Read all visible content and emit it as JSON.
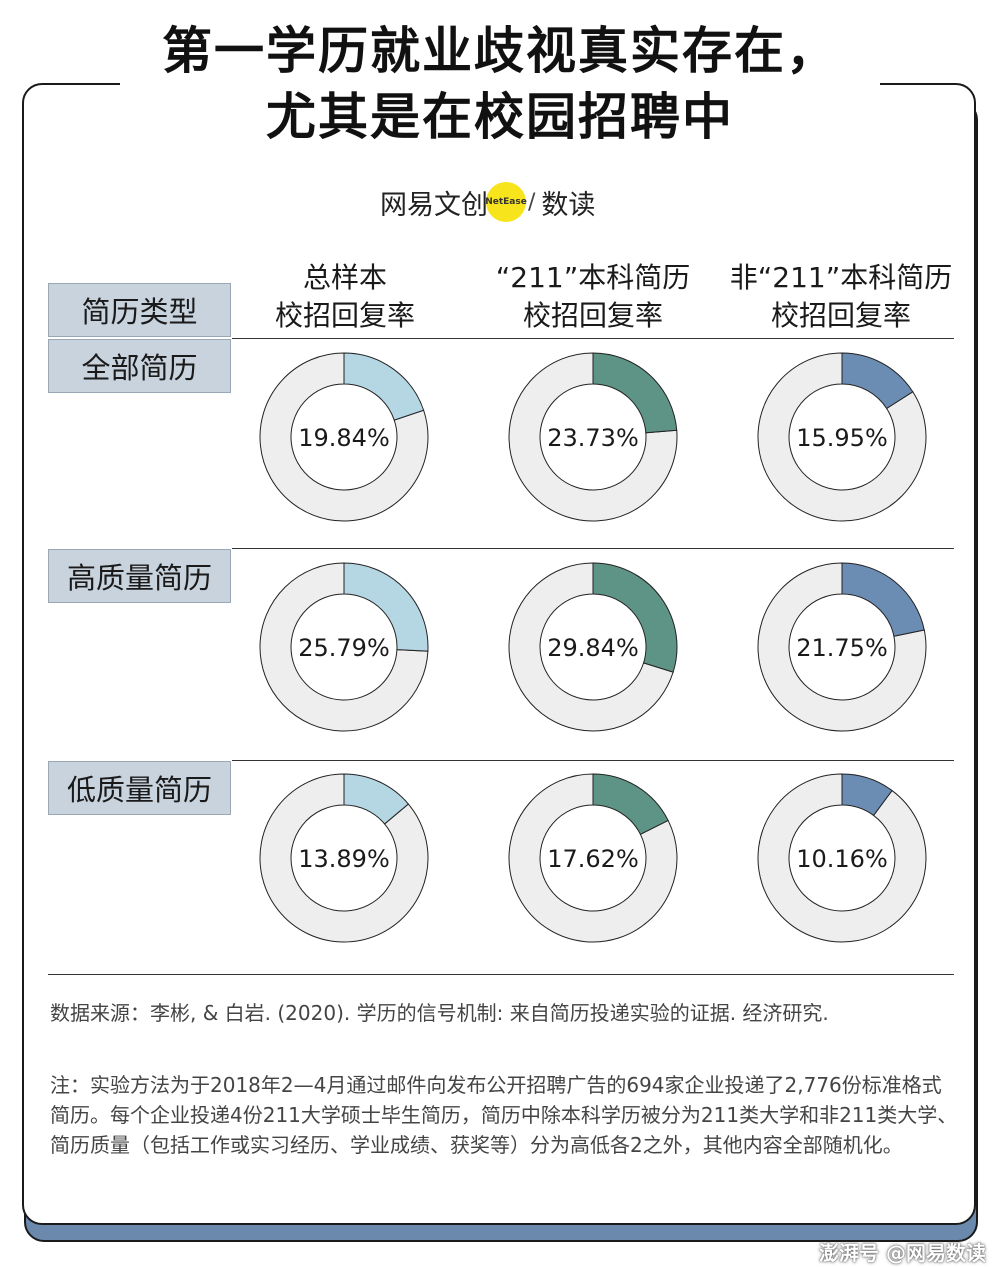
{
  "title": {
    "line1": "第一学历就业歧视真实存在，",
    "line2": "尤其是在校园招聘中"
  },
  "logo": {
    "left_text": "网易文创",
    "badge": "NetEase",
    "right_text": "数读"
  },
  "table": {
    "corner_label": "简历类型",
    "columns": [
      {
        "line1": "总样本",
        "line2": "校招回复率"
      },
      {
        "line1": "“211”本科简历",
        "line2": "校招回复率"
      },
      {
        "line1": "非“211”本科简历",
        "line2": "校招回复率"
      }
    ],
    "rows": [
      "全部简历",
      "高质量简历",
      "低质量简历"
    ]
  },
  "chart_data": {
    "type": "pie",
    "variant": "donut-grid",
    "rows": [
      "全部简历",
      "高质量简历",
      "低质量简历"
    ],
    "columns": [
      "总样本 校招回复率",
      "“211”本科简历 校招回复率",
      "非“211”本科简历 校招回复率"
    ],
    "values": [
      [
        19.84,
        23.73,
        15.95
      ],
      [
        25.79,
        29.84,
        21.75
      ],
      [
        13.89,
        17.62,
        10.16
      ]
    ],
    "labels": [
      [
        "19.84%",
        "23.73%",
        "15.95%"
      ],
      [
        "25.79%",
        "29.84%",
        "21.75%"
      ],
      [
        "13.89%",
        "17.62%",
        "10.16%"
      ]
    ],
    "unit": "%",
    "series_colors": [
      "#b5d6e3",
      "#5e9485",
      "#6b8cb3"
    ],
    "remainder_color": "#eeeeee"
  },
  "notes": {
    "source": "数据来源：李彬, & 白岩. (2020). 学历的信号机制: 来自简历投递实验的证据. 经济研究.",
    "method": "注：实验方法为于2018年2—4月通过邮件向发布公开招聘广告的694家企业投递了2,776份标准格式简历。每个企业投递4份211大学硕士毕生简历，简历中除本科学历被分为211类大学和非211类大学、简历质量（包括工作或实习经历、学业成绩、获奖等）分为高低各2之外，其他内容全部随机化。"
  },
  "watermark": "澎湃号 @网易数读"
}
